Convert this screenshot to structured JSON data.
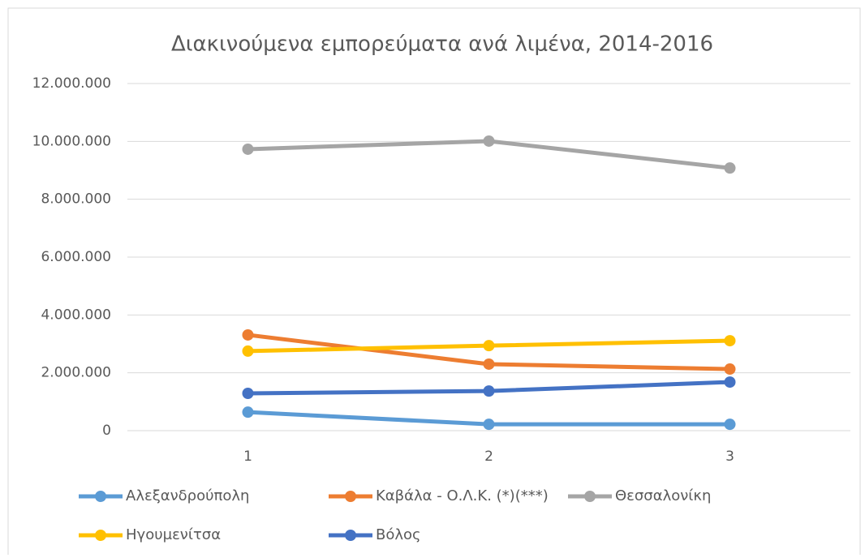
{
  "chart_data": {
    "type": "line",
    "title": "Διακινούμενα εμπορεύματα ανά λιμένα, 2014-2016",
    "categories": [
      "1",
      "2",
      "3"
    ],
    "series": [
      {
        "name": "Αλεξανδρούπολη",
        "color": "#5b9bd5",
        "values": [
          640000,
          220000,
          220000
        ]
      },
      {
        "name": "Καβάλα - Ο.Λ.Κ. (*)(***)",
        "color": "#ed7d31",
        "values": [
          3310000,
          2300000,
          2130000
        ]
      },
      {
        "name": "Θεσσαλονίκη",
        "color": "#a5a5a5",
        "values": [
          9730000,
          10010000,
          9080000
        ]
      },
      {
        "name": "Ηγουμενίτσα",
        "color": "#ffc000",
        "values": [
          2750000,
          2940000,
          3110000
        ]
      },
      {
        "name": "Βόλος",
        "color": "#4472c4",
        "values": [
          1290000,
          1370000,
          1680000
        ]
      }
    ],
    "ylim": [
      0,
      12000000
    ],
    "yticks": [
      0,
      {
        "value": 2000000,
        "label": "2.000.000"
      },
      {
        "value": 4000000,
        "label": "4.000.000"
      },
      {
        "value": 6000000,
        "label": "6.000.000"
      },
      {
        "value": 8000000,
        "label": "8.000.000"
      },
      {
        "value": 10000000,
        "label": "10.000.000"
      },
      {
        "value": 12000000,
        "label": "12.000.000"
      }
    ],
    "grid": true,
    "legend": "bottom"
  }
}
